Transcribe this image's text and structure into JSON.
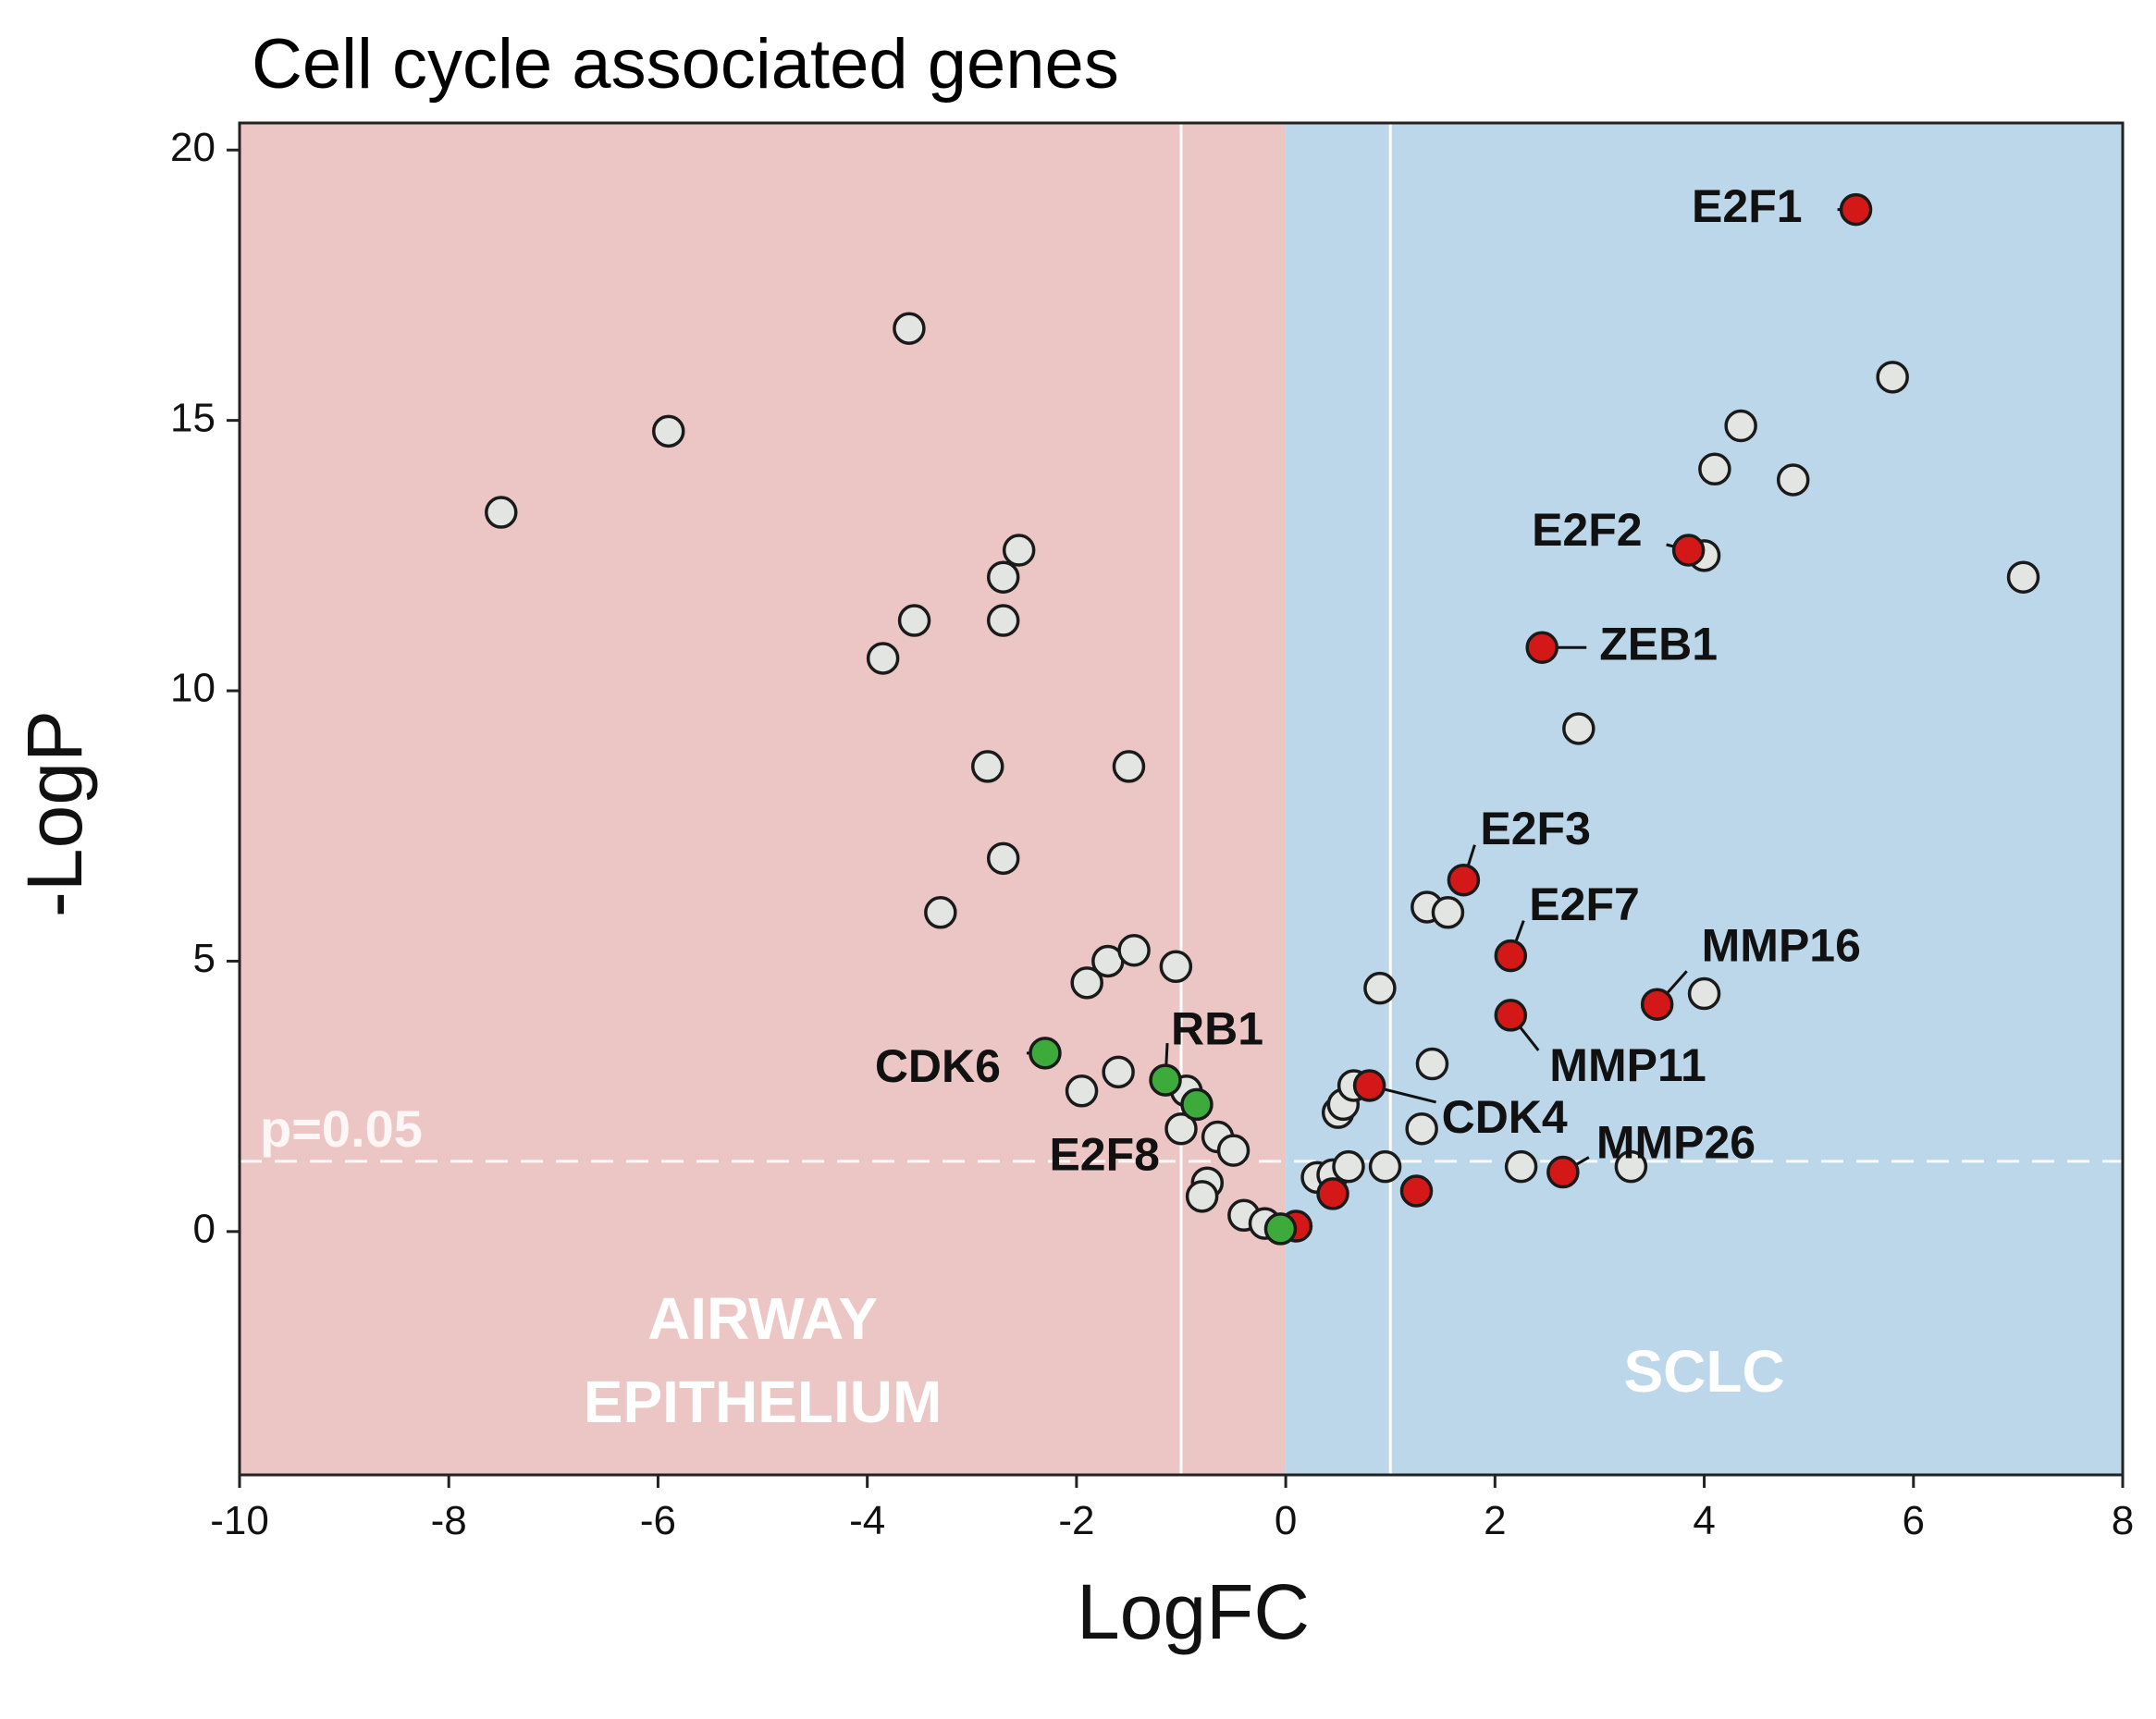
{
  "chart_data": {
    "type": "scatter",
    "title": "Cell cycle associated genes",
    "xlabel": "LogFC",
    "ylabel": "-LogP",
    "xlim": [
      -10,
      8
    ],
    "ylim": [
      -4.5,
      20.5
    ],
    "x_ticks": [
      -10,
      -8,
      -6,
      -4,
      -2,
      0,
      2,
      4,
      6,
      8
    ],
    "y_ticks": [
      0,
      5,
      10,
      15,
      20
    ],
    "regions": [
      {
        "name": "AIRWAY EPITHELIUM",
        "lines": [
          "AIRWAY",
          "EPITHELIUM"
        ],
        "x_range": [
          -10,
          0
        ],
        "color": "#ebc6c5"
      },
      {
        "name": "SCLC",
        "lines": [
          "SCLC"
        ],
        "x_range": [
          0,
          8
        ],
        "color": "#bdd7ea"
      }
    ],
    "fc_thresholds": [
      -1,
      1
    ],
    "significance": {
      "label": "p=0.05",
      "y": 1.3
    },
    "colors": {
      "other": "#e3e5e2",
      "up": "#d41818",
      "down": "#3cab3c",
      "outline": "#1a1a1a"
    },
    "series": [
      {
        "name": "other",
        "points": [
          {
            "x": -7.5,
            "y": 13.3
          },
          {
            "x": -5.9,
            "y": 14.8
          },
          {
            "x": -3.6,
            "y": 16.7
          },
          {
            "x": -3.85,
            "y": 10.6
          },
          {
            "x": -3.55,
            "y": 11.3
          },
          {
            "x": -2.7,
            "y": 12.1
          },
          {
            "x": -2.55,
            "y": 12.6
          },
          {
            "x": -2.7,
            "y": 11.3
          },
          {
            "x": -2.85,
            "y": 8.6
          },
          {
            "x": -1.5,
            "y": 8.6
          },
          {
            "x": -2.7,
            "y": 6.9
          },
          {
            "x": -3.3,
            "y": 5.9
          },
          {
            "x": -1.9,
            "y": 4.6
          },
          {
            "x": -1.7,
            "y": 5.0
          },
          {
            "x": -1.45,
            "y": 5.2
          },
          {
            "x": -1.05,
            "y": 4.9
          },
          {
            "x": -1.95,
            "y": 2.6
          },
          {
            "x": -1.6,
            "y": 2.95
          },
          {
            "x": -1.0,
            "y": 1.9
          },
          {
            "x": -0.95,
            "y": 2.6
          },
          {
            "x": -0.65,
            "y": 1.75
          },
          {
            "x": -0.5,
            "y": 1.5
          },
          {
            "x": -0.75,
            "y": 0.9
          },
          {
            "x": -0.8,
            "y": 0.65
          },
          {
            "x": -0.4,
            "y": 0.3
          },
          {
            "x": -0.2,
            "y": 0.15
          },
          {
            "x": 0.3,
            "y": 1.0
          },
          {
            "x": 0.45,
            "y": 1.05
          },
          {
            "x": 0.5,
            "y": 2.2
          },
          {
            "x": 0.55,
            "y": 2.35
          },
          {
            "x": 0.65,
            "y": 2.7
          },
          {
            "x": 0.6,
            "y": 1.2
          },
          {
            "x": 0.9,
            "y": 4.5
          },
          {
            "x": 0.95,
            "y": 1.2
          },
          {
            "x": 1.3,
            "y": 1.9
          },
          {
            "x": 1.4,
            "y": 3.1
          },
          {
            "x": 1.35,
            "y": 6.0
          },
          {
            "x": 1.55,
            "y": 5.9
          },
          {
            "x": 2.25,
            "y": 1.2
          },
          {
            "x": 2.8,
            "y": 9.3
          },
          {
            "x": 3.3,
            "y": 1.2
          },
          {
            "x": 4.0,
            "y": 4.4
          },
          {
            "x": 4.0,
            "y": 12.5
          },
          {
            "x": 4.1,
            "y": 14.1
          },
          {
            "x": 4.35,
            "y": 14.9
          },
          {
            "x": 4.85,
            "y": 13.9
          },
          {
            "x": 5.8,
            "y": 15.8
          },
          {
            "x": 7.05,
            "y": 12.1
          }
        ]
      },
      {
        "name": "up",
        "points": [
          {
            "x": 5.45,
            "y": 18.9,
            "label": "E2F1"
          },
          {
            "x": 3.85,
            "y": 12.6,
            "label": "E2F2"
          },
          {
            "x": 2.45,
            "y": 10.8,
            "label": "ZEB1"
          },
          {
            "x": 1.7,
            "y": 6.5,
            "label": "E2F3"
          },
          {
            "x": 2.15,
            "y": 5.1,
            "label": "E2F7"
          },
          {
            "x": 3.55,
            "y": 4.2,
            "label": "MMP16"
          },
          {
            "x": 2.15,
            "y": 4.0,
            "label": "MMP11"
          },
          {
            "x": 0.8,
            "y": 2.7,
            "label": "CDK4"
          },
          {
            "x": 2.65,
            "y": 1.1,
            "label": "MMP26"
          },
          {
            "x": 0.45,
            "y": 0.7
          },
          {
            "x": 1.25,
            "y": 0.75
          },
          {
            "x": 0.1,
            "y": 0.1
          }
        ]
      },
      {
        "name": "down",
        "points": [
          {
            "x": -2.3,
            "y": 3.3,
            "label": "CDK6"
          },
          {
            "x": -1.15,
            "y": 2.8,
            "label": "RB1"
          },
          {
            "x": -0.85,
            "y": 2.35,
            "label": "E2F8"
          },
          {
            "x": -0.05,
            "y": 0.05
          }
        ]
      }
    ]
  }
}
